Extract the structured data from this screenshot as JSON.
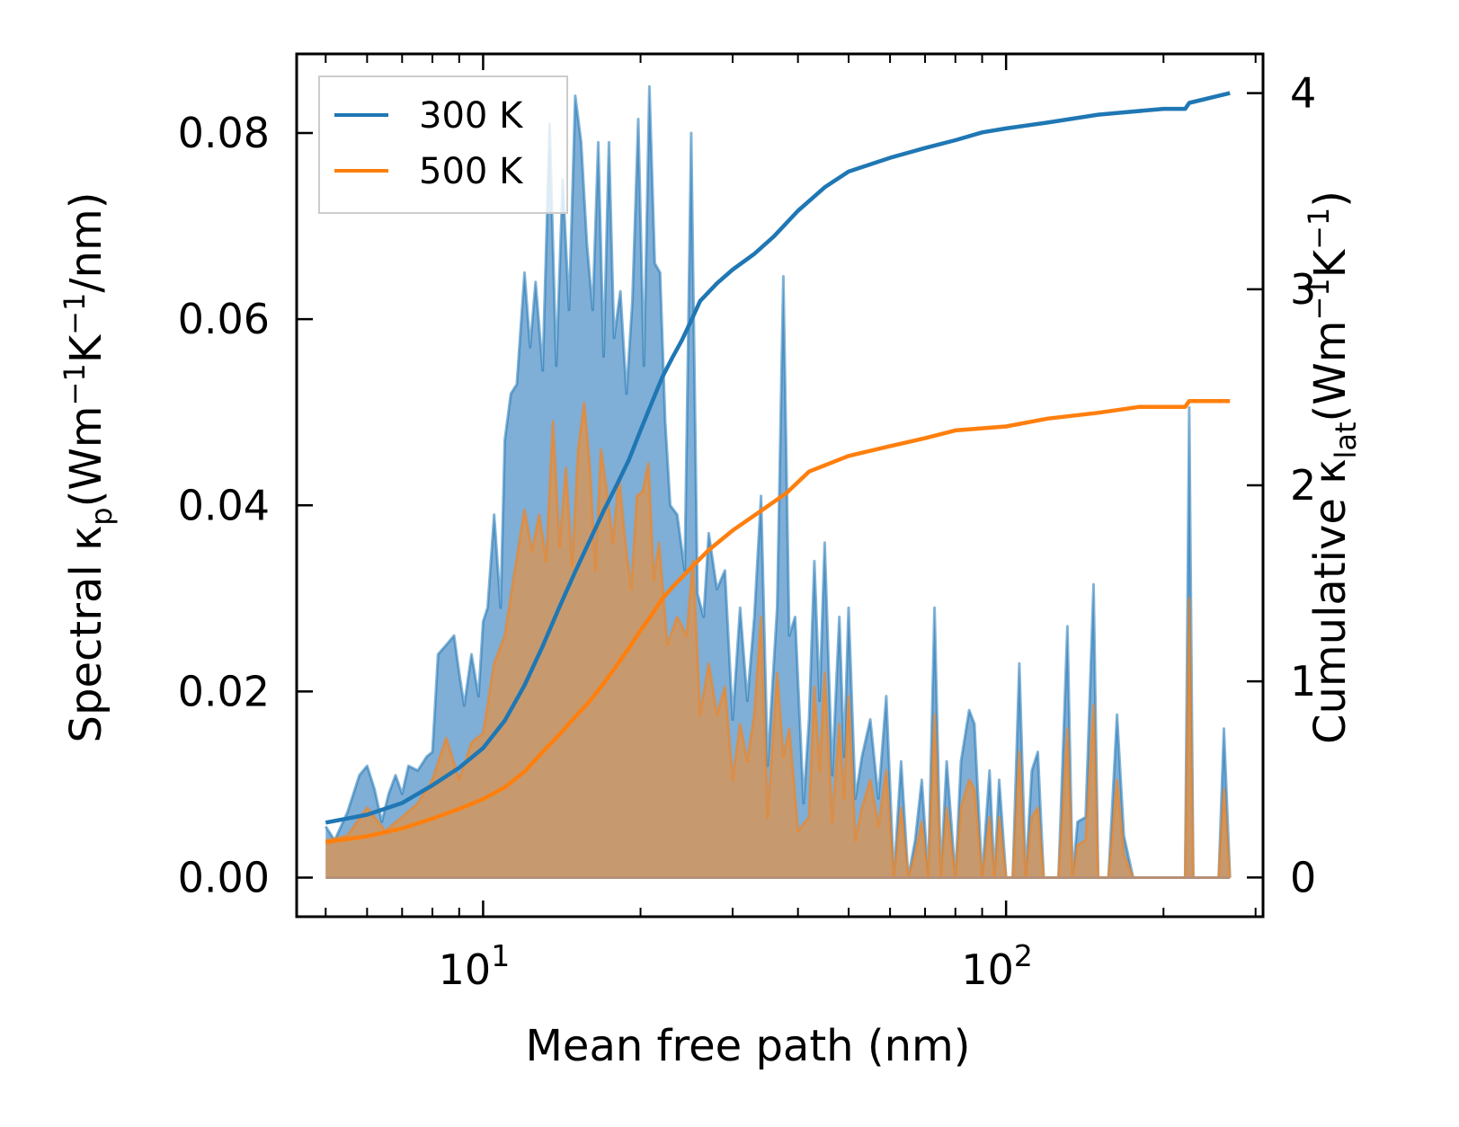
{
  "chart_data": {
    "type": "line",
    "xscale": "log",
    "xlabel": "Mean free path (nm)",
    "ylabel_left": "Spectral κ",
    "ylabel_left_sub": "p",
    "ylabel_left_units": "(Wm",
    "ylabel_left_units_tail": "/nm)",
    "ylabel_right": "Cumulative κ",
    "ylabel_right_sub": "lat",
    "ylabel_right_units": "(Wm",
    "ylabel_right_units_tail": ")",
    "exp_minus1": "−1",
    "unit_K": "K",
    "x_ticks": [
      {
        "base": "10",
        "exp": "1",
        "value": 10
      },
      {
        "base": "10",
        "exp": "2",
        "value": 100
      }
    ],
    "xlim": [
      4.4,
      310
    ],
    "ylim_left": [
      -0.0042,
      0.0885
    ],
    "ylim_right": [
      -0.2,
      4.2
    ],
    "y_ticks_left": [
      "0.00",
      "0.02",
      "0.04",
      "0.06",
      "0.08"
    ],
    "y_ticks_right": [
      "0",
      "1",
      "2",
      "3",
      "4"
    ],
    "legend": [
      {
        "name": "300 K",
        "color": "#1f77b4"
      },
      {
        "name": "500 K",
        "color": "#ff7f0e"
      }
    ],
    "colors": {
      "c300": "#1f77b4",
      "c500": "#ff7f0e",
      "fill300": "#7faed6",
      "fill500": "#c69a6e"
    },
    "spectral": {
      "300K": [
        [
          5.0,
          0.0055
        ],
        [
          5.2,
          0.004
        ],
        [
          5.5,
          0.007
        ],
        [
          5.8,
          0.011
        ],
        [
          6.0,
          0.012
        ],
        [
          6.2,
          0.0095
        ],
        [
          6.4,
          0.006
        ],
        [
          6.6,
          0.009
        ],
        [
          6.8,
          0.011
        ],
        [
          7.0,
          0.009
        ],
        [
          7.2,
          0.012
        ],
        [
          7.5,
          0.0115
        ],
        [
          7.8,
          0.013
        ],
        [
          8.0,
          0.0135
        ],
        [
          8.2,
          0.024
        ],
        [
          8.5,
          0.025
        ],
        [
          8.8,
          0.026
        ],
        [
          9.0,
          0.022
        ],
        [
          9.2,
          0.0185
        ],
        [
          9.5,
          0.024
        ],
        [
          9.8,
          0.0195
        ],
        [
          10.0,
          0.0275
        ],
        [
          10.2,
          0.029
        ],
        [
          10.5,
          0.039
        ],
        [
          10.8,
          0.029
        ],
        [
          11.0,
          0.047
        ],
        [
          11.3,
          0.052
        ],
        [
          11.6,
          0.053
        ],
        [
          12.0,
          0.065
        ],
        [
          12.3,
          0.057
        ],
        [
          12.6,
          0.064
        ],
        [
          13.0,
          0.0545
        ],
        [
          13.4,
          0.081
        ],
        [
          13.8,
          0.055
        ],
        [
          14.2,
          0.075
        ],
        [
          14.6,
          0.061
        ],
        [
          15.0,
          0.084
        ],
        [
          15.4,
          0.079
        ],
        [
          15.8,
          0.068
        ],
        [
          16.2,
          0.061
        ],
        [
          16.6,
          0.079
        ],
        [
          17.0,
          0.056
        ],
        [
          17.4,
          0.079
        ],
        [
          17.8,
          0.058
        ],
        [
          18.3,
          0.063
        ],
        [
          18.8,
          0.052
        ],
        [
          19.3,
          0.062
        ],
        [
          19.8,
          0.0815
        ],
        [
          20.3,
          0.055
        ],
        [
          20.8,
          0.085
        ],
        [
          21.3,
          0.066
        ],
        [
          21.8,
          0.065
        ],
        [
          22.3,
          0.049
        ],
        [
          22.8,
          0.04
        ],
        [
          23.5,
          0.039
        ],
        [
          24.3,
          0.033
        ],
        [
          25.0,
          0.08
        ],
        [
          25.7,
          0.0305
        ],
        [
          26.4,
          0.028
        ],
        [
          27.0,
          0.037
        ],
        [
          28.0,
          0.031
        ],
        [
          29.0,
          0.033
        ],
        [
          30.0,
          0.017
        ],
        [
          31.0,
          0.029
        ],
        [
          32.0,
          0.019
        ],
        [
          33.0,
          0.028
        ],
        [
          34.0,
          0.041
        ],
        [
          35.0,
          0.012
        ],
        [
          36.5,
          0.029
        ],
        [
          37.5,
          0.0646
        ],
        [
          38.5,
          0.026
        ],
        [
          39.5,
          0.028
        ],
        [
          41.0,
          0.008
        ],
        [
          42.0,
          0.017
        ],
        [
          43.0,
          0.034
        ],
        [
          44.0,
          0.019
        ],
        [
          45.0,
          0.036
        ],
        [
          46.5,
          0.011
        ],
        [
          48.0,
          0.028
        ],
        [
          49.0,
          0.013
        ],
        [
          50.0,
          0.029
        ],
        [
          51.5,
          0.0085
        ],
        [
          53.0,
          0.013
        ],
        [
          55.0,
          0.017
        ],
        [
          57.0,
          0.0085
        ],
        [
          59.0,
          0.0195
        ],
        [
          61.0,
          0.0
        ],
        [
          63.0,
          0.0125
        ],
        [
          65.0,
          0.0
        ],
        [
          67.0,
          0.004
        ],
        [
          69.0,
          0.0105
        ],
        [
          71.0,
          0.0
        ],
        [
          73.0,
          0.029
        ],
        [
          75.0,
          0.0
        ],
        [
          77.0,
          0.0125
        ],
        [
          80.0,
          0.0
        ],
        [
          82.0,
          0.0125
        ],
        [
          85.0,
          0.018
        ],
        [
          87.0,
          0.0165
        ],
        [
          90.0,
          0.0
        ],
        [
          93.0,
          0.0115
        ],
        [
          95.0,
          0.0
        ],
        [
          97.0,
          0.0105
        ],
        [
          100.0,
          0.0
        ],
        [
          103.0,
          0.0
        ],
        [
          106.0,
          0.023
        ],
        [
          109.0,
          0.0
        ],
        [
          112.0,
          0.0115
        ],
        [
          115.0,
          0.0135
        ],
        [
          118.0,
          0.0
        ],
        [
          122.0,
          0.0
        ],
        [
          126.0,
          0.0
        ],
        [
          131.0,
          0.027
        ],
        [
          134.0,
          0.0
        ],
        [
          137.0,
          0.006
        ],
        [
          142.0,
          0.0065
        ],
        [
          147.0,
          0.0315
        ],
        [
          150.0,
          0.0
        ],
        [
          157.0,
          0.0
        ],
        [
          163.0,
          0.0175
        ],
        [
          168.0,
          0.0045
        ],
        [
          175.0,
          0.0
        ],
        [
          200.0,
          0.0
        ],
        [
          220.0,
          0.0
        ],
        [
          224.0,
          0.0505
        ],
        [
          228.0,
          0.0
        ],
        [
          255.0,
          0.0
        ],
        [
          261.0,
          0.016
        ],
        [
          268.0,
          0.0
        ]
      ],
      "500K": [
        [
          5.0,
          0.004
        ],
        [
          5.5,
          0.0045
        ],
        [
          6.0,
          0.0075
        ],
        [
          6.5,
          0.005
        ],
        [
          7.0,
          0.0065
        ],
        [
          7.5,
          0.008
        ],
        [
          8.0,
          0.0105
        ],
        [
          8.5,
          0.015
        ],
        [
          9.0,
          0.0105
        ],
        [
          9.5,
          0.0145
        ],
        [
          10.0,
          0.0155
        ],
        [
          10.5,
          0.023
        ],
        [
          11.0,
          0.026
        ],
        [
          11.5,
          0.033
        ],
        [
          12.0,
          0.0395
        ],
        [
          12.4,
          0.035
        ],
        [
          12.8,
          0.039
        ],
        [
          13.2,
          0.034
        ],
        [
          13.6,
          0.049
        ],
        [
          14.0,
          0.0355
        ],
        [
          14.4,
          0.044
        ],
        [
          14.8,
          0.0335
        ],
        [
          15.2,
          0.046
        ],
        [
          15.6,
          0.051
        ],
        [
          16.0,
          0.044
        ],
        [
          16.4,
          0.033
        ],
        [
          16.8,
          0.046
        ],
        [
          17.2,
          0.042
        ],
        [
          17.7,
          0.036
        ],
        [
          18.2,
          0.043
        ],
        [
          18.7,
          0.036
        ],
        [
          19.2,
          0.031
        ],
        [
          19.7,
          0.041
        ],
        [
          20.2,
          0.0415
        ],
        [
          20.7,
          0.0445
        ],
        [
          21.2,
          0.032
        ],
        [
          21.7,
          0.036
        ],
        [
          22.5,
          0.025
        ],
        [
          23.5,
          0.028
        ],
        [
          24.5,
          0.026
        ],
        [
          25.2,
          0.034
        ],
        [
          26.0,
          0.0175
        ],
        [
          27.0,
          0.023
        ],
        [
          28.0,
          0.0175
        ],
        [
          29.0,
          0.0205
        ],
        [
          30.0,
          0.0105
        ],
        [
          31.0,
          0.0165
        ],
        [
          32.0,
          0.0125
        ],
        [
          33.0,
          0.0175
        ],
        [
          34.0,
          0.028
        ],
        [
          35.0,
          0.0065
        ],
        [
          36.5,
          0.022
        ],
        [
          37.5,
          0.013
        ],
        [
          38.5,
          0.016
        ],
        [
          40.0,
          0.005
        ],
        [
          42.0,
          0.0065
        ],
        [
          43.0,
          0.0205
        ],
        [
          44.0,
          0.0115
        ],
        [
          45.0,
          0.022
        ],
        [
          46.5,
          0.006
        ],
        [
          48.0,
          0.0165
        ],
        [
          49.0,
          0.0085
        ],
        [
          50.0,
          0.0195
        ],
        [
          51.5,
          0.004
        ],
        [
          53.0,
          0.0075
        ],
        [
          55.0,
          0.0105
        ],
        [
          57.0,
          0.0055
        ],
        [
          59.0,
          0.0115
        ],
        [
          61.0,
          0.0
        ],
        [
          63.0,
          0.0075
        ],
        [
          65.0,
          0.0
        ],
        [
          67.0,
          0.0025
        ],
        [
          69.0,
          0.006
        ],
        [
          71.0,
          0.0
        ],
        [
          73.0,
          0.0175
        ],
        [
          75.0,
          0.0
        ],
        [
          77.0,
          0.0075
        ],
        [
          80.0,
          0.0
        ],
        [
          82.0,
          0.0075
        ],
        [
          85.0,
          0.0105
        ],
        [
          87.0,
          0.0095
        ],
        [
          90.0,
          0.0
        ],
        [
          93.0,
          0.0065
        ],
        [
          95.0,
          0.0
        ],
        [
          97.0,
          0.0065
        ],
        [
          100.0,
          0.0
        ],
        [
          103.0,
          0.0
        ],
        [
          106.0,
          0.0135
        ],
        [
          109.0,
          0.0
        ],
        [
          112.0,
          0.0065
        ],
        [
          115.0,
          0.0075
        ],
        [
          118.0,
          0.0
        ],
        [
          126.0,
          0.0
        ],
        [
          131.0,
          0.016
        ],
        [
          134.0,
          0.0
        ],
        [
          137.0,
          0.0035
        ],
        [
          142.0,
          0.004
        ],
        [
          147.0,
          0.0185
        ],
        [
          150.0,
          0.0
        ],
        [
          157.0,
          0.0
        ],
        [
          163.0,
          0.0105
        ],
        [
          168.0,
          0.0025
        ],
        [
          175.0,
          0.0
        ],
        [
          220.0,
          0.0
        ],
        [
          224.0,
          0.03
        ],
        [
          228.0,
          0.0
        ],
        [
          255.0,
          0.0
        ],
        [
          261.0,
          0.0095
        ],
        [
          268.0,
          0.0
        ]
      ]
    },
    "cumulative": {
      "300K": [
        [
          5.0,
          0.28
        ],
        [
          6.0,
          0.32
        ],
        [
          7.0,
          0.38
        ],
        [
          8.0,
          0.47
        ],
        [
          9.0,
          0.56
        ],
        [
          10.0,
          0.66
        ],
        [
          11.0,
          0.8
        ],
        [
          12.0,
          0.98
        ],
        [
          13.0,
          1.18
        ],
        [
          14.0,
          1.38
        ],
        [
          15.0,
          1.56
        ],
        [
          16.0,
          1.72
        ],
        [
          17.0,
          1.87
        ],
        [
          18.0,
          2.0
        ],
        [
          19.0,
          2.13
        ],
        [
          20.0,
          2.28
        ],
        [
          21.0,
          2.42
        ],
        [
          22.0,
          2.55
        ],
        [
          23.0,
          2.65
        ],
        [
          24.0,
          2.74
        ],
        [
          25.0,
          2.84
        ],
        [
          26.0,
          2.94
        ],
        [
          28.0,
          3.03
        ],
        [
          30.0,
          3.1
        ],
        [
          33.0,
          3.18
        ],
        [
          36.0,
          3.27
        ],
        [
          40.0,
          3.4
        ],
        [
          45.0,
          3.52
        ],
        [
          50.0,
          3.6
        ],
        [
          60.0,
          3.67
        ],
        [
          70.0,
          3.72
        ],
        [
          80.0,
          3.76
        ],
        [
          90.0,
          3.8
        ],
        [
          100.0,
          3.82
        ],
        [
          120.0,
          3.85
        ],
        [
          150.0,
          3.89
        ],
        [
          200.0,
          3.92
        ],
        [
          220.0,
          3.92
        ],
        [
          224.0,
          3.95
        ],
        [
          268.0,
          4.0
        ]
      ],
      "500K": [
        [
          5.0,
          0.18
        ],
        [
          6.0,
          0.21
        ],
        [
          7.0,
          0.25
        ],
        [
          8.0,
          0.3
        ],
        [
          9.0,
          0.35
        ],
        [
          10.0,
          0.4
        ],
        [
          11.0,
          0.46
        ],
        [
          12.0,
          0.54
        ],
        [
          13.0,
          0.64
        ],
        [
          14.0,
          0.73
        ],
        [
          15.0,
          0.82
        ],
        [
          16.0,
          0.9
        ],
        [
          17.0,
          0.99
        ],
        [
          18.0,
          1.08
        ],
        [
          19.0,
          1.17
        ],
        [
          20.0,
          1.26
        ],
        [
          21.0,
          1.34
        ],
        [
          22.0,
          1.42
        ],
        [
          23.0,
          1.48
        ],
        [
          25.0,
          1.58
        ],
        [
          27.0,
          1.67
        ],
        [
          30.0,
          1.77
        ],
        [
          34.0,
          1.87
        ],
        [
          38.0,
          1.96
        ],
        [
          42.0,
          2.07
        ],
        [
          50.0,
          2.15
        ],
        [
          60.0,
          2.2
        ],
        [
          70.0,
          2.24
        ],
        [
          80.0,
          2.28
        ],
        [
          100.0,
          2.3
        ],
        [
          120.0,
          2.34
        ],
        [
          150.0,
          2.37
        ],
        [
          180.0,
          2.4
        ],
        [
          220.0,
          2.4
        ],
        [
          224.0,
          2.43
        ],
        [
          268.0,
          2.43
        ]
      ]
    }
  }
}
